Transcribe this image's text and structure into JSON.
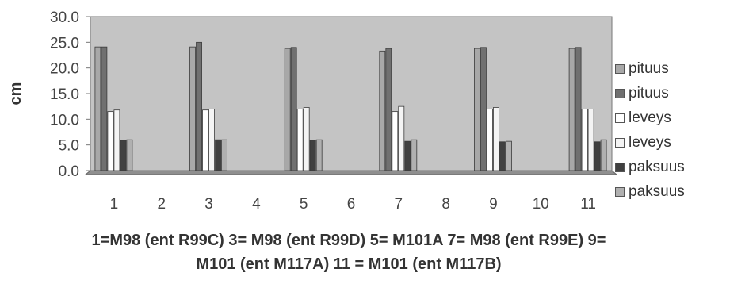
{
  "chart_data": {
    "type": "bar",
    "categories": [
      "1",
      "2",
      "3",
      "4",
      "5",
      "6",
      "7",
      "8",
      "9",
      "10",
      "11"
    ],
    "ylabel": "cm",
    "ylim": [
      0,
      30
    ],
    "yticks": [
      "0.0",
      "5.0",
      "10.0",
      "15.0",
      "20.0",
      "25.0",
      "30.0"
    ],
    "xlabel": "1=M98 (ent R99C) 3= M98 (ent R99D) 5= M101A 7= M98 (ent R99E) 9= M101 (ent M117A) 11 = M101 (ent M117B)",
    "plot_background": "#c4c4c4",
    "grid": false,
    "legend_position": "right",
    "series": [
      {
        "name": "pituus",
        "color": "#a8a8a8",
        "values": [
          24.1,
          null,
          24.1,
          null,
          23.8,
          null,
          23.3,
          null,
          23.8,
          null,
          23.8
        ]
      },
      {
        "name": "pituus",
        "color": "#707070",
        "values": [
          24.1,
          null,
          25.0,
          null,
          24.0,
          null,
          23.8,
          null,
          24.0,
          null,
          24.0
        ]
      },
      {
        "name": "leveys",
        "color": "#ffffff",
        "values": [
          11.5,
          null,
          11.8,
          null,
          12.0,
          null,
          11.5,
          null,
          12.0,
          null,
          12.0
        ]
      },
      {
        "name": "leveys",
        "color": "#f4f4f4",
        "values": [
          11.8,
          null,
          12.0,
          null,
          12.3,
          null,
          12.5,
          null,
          12.3,
          null,
          12.0
        ]
      },
      {
        "name": "paksuus",
        "color": "#404040",
        "values": [
          5.9,
          null,
          6.0,
          null,
          5.9,
          null,
          5.7,
          null,
          5.6,
          null,
          5.6
        ]
      },
      {
        "name": "paksuus",
        "color": "#b0b0b0",
        "values": [
          6.0,
          null,
          6.0,
          null,
          6.0,
          null,
          6.0,
          null,
          5.7,
          null,
          6.0
        ]
      }
    ]
  }
}
